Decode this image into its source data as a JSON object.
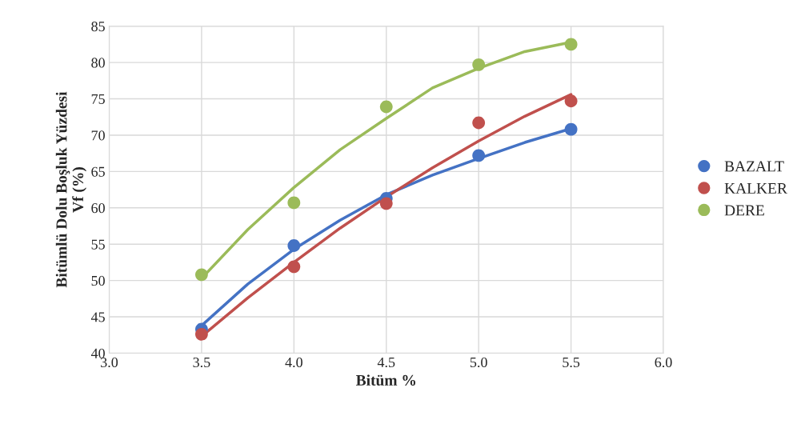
{
  "chart_data": {
    "type": "scatter",
    "xlabel": "Bitüm %",
    "ylabel": "Bitümlü Dolu Boşluk Yüzdesi\nVf (%)",
    "xlim": [
      3.0,
      6.0
    ],
    "xticks": [
      {
        "value": 3.0,
        "label": "3.0"
      },
      {
        "value": 3.5,
        "label": "3.5"
      },
      {
        "value": 4.0,
        "label": "4.0"
      },
      {
        "value": 4.5,
        "label": "4.5"
      },
      {
        "value": 5.0,
        "label": "5.0"
      },
      {
        "value": 5.5,
        "label": "5.5"
      },
      {
        "value": 6.0,
        "label": "6.0"
      }
    ],
    "ylim": [
      40,
      85
    ],
    "yticks": [
      40,
      45,
      50,
      55,
      60,
      65,
      70,
      75,
      80,
      85
    ],
    "grid": true,
    "legend": "right",
    "marker": "circle",
    "series": [
      {
        "type": "line",
        "marker": "none",
        "color": "#4472c4",
        "x": [
          3.5,
          3.75,
          4.0,
          4.25,
          4.5,
          4.75,
          5.0,
          5.25,
          5.5
        ],
        "values": [
          43.8,
          49.5,
          54.3,
          58.3,
          61.8,
          64.5,
          66.8,
          69.0,
          70.9
        ]
      },
      {
        "type": "line",
        "marker": "none",
        "color": "#c0504d",
        "x": [
          3.5,
          3.75,
          4.0,
          4.25,
          4.5,
          4.75,
          5.0,
          5.25,
          5.5
        ],
        "values": [
          42.3,
          47.6,
          52.5,
          57.2,
          61.5,
          65.5,
          69.2,
          72.6,
          75.6
        ]
      },
      {
        "type": "line",
        "marker": "none",
        "color": "#9bbb59",
        "x": [
          3.5,
          3.75,
          4.0,
          4.25,
          4.5,
          4.75,
          5.0,
          5.25,
          5.5
        ],
        "values": [
          50.3,
          57.0,
          62.8,
          68.0,
          72.3,
          76.5,
          79.2,
          81.5,
          82.8
        ]
      },
      {
        "name": "BAZALT",
        "color": "#4472c4",
        "x": [
          3.5,
          4.0,
          4.5,
          5.0,
          5.5
        ],
        "values": [
          43.3,
          54.8,
          61.3,
          67.2,
          70.8
        ]
      },
      {
        "name": "KALKER",
        "color": "#c0504d",
        "x": [
          3.5,
          4.0,
          4.5,
          5.0,
          5.5
        ],
        "values": [
          42.6,
          51.9,
          60.6,
          71.7,
          74.7
        ]
      },
      {
        "name": "DERE",
        "color": "#9bbb59",
        "x": [
          3.5,
          4.0,
          4.5,
          5.0,
          5.5
        ],
        "values": [
          50.8,
          60.7,
          73.9,
          79.7,
          82.5
        ]
      }
    ]
  }
}
